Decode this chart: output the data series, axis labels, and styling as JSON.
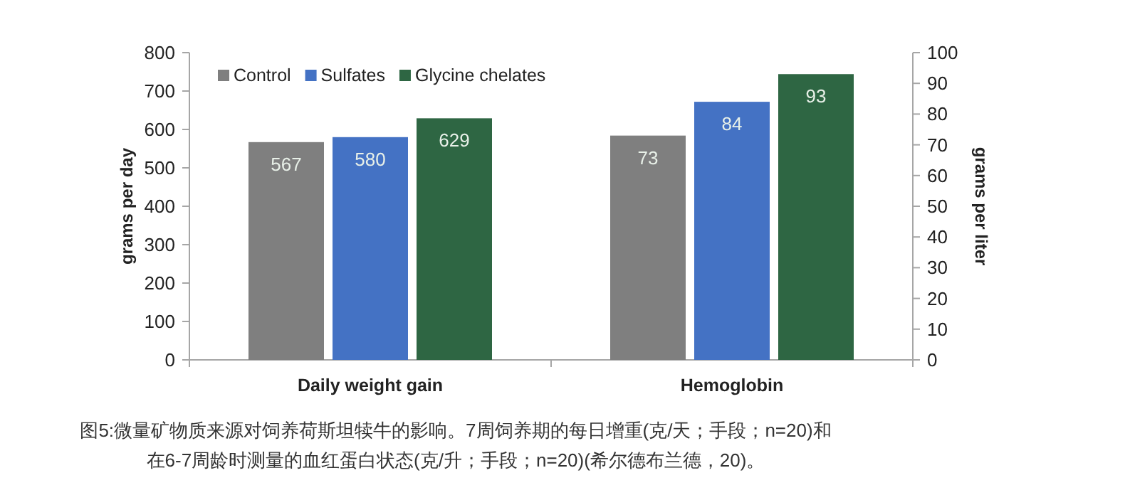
{
  "chart_data": {
    "type": "bar",
    "categories": [
      "Daily weight gain",
      "Hemoglobin"
    ],
    "series": [
      {
        "name": "Control",
        "color": "#7f7f7f",
        "values": [
          567,
          null
        ]
      },
      {
        "name": "Sulfates",
        "color": "#4472c4",
        "values": [
          580,
          null
        ]
      },
      {
        "name": "Glycine chelates",
        "color": "#2e6643",
        "values": [
          629,
          null
        ]
      },
      {
        "color": "#7f7f7f",
        "axis": "y2",
        "values": [
          null,
          73
        ]
      },
      {
        "color": "#4472c4",
        "axis": "y2",
        "values": [
          null,
          84
        ]
      },
      {
        "color": "#2e6643",
        "axis": "y2",
        "values": [
          null,
          93
        ]
      }
    ],
    "ylabel": "grams per day",
    "y2label": "grams per liter",
    "ylim": [
      0,
      800
    ],
    "yticks": [
      0,
      100,
      200,
      300,
      400,
      500,
      600,
      700,
      800
    ],
    "y2lim": [
      0,
      100
    ],
    "y2ticks": [
      0,
      10,
      20,
      30,
      40,
      50,
      60,
      70,
      80,
      90,
      100
    ],
    "data_labels": true,
    "legend": "top",
    "grid": false,
    "annotations": [
      "图5:微量矿物质来源对饲养荷斯坦犊牛的影响。7周饲养期的每日增重(克/天；手段；n=20)和在6-7周龄时测量的血红蛋白状态(克/升；手段；n=20)(希尔德布兰德，20)。"
    ]
  }
}
